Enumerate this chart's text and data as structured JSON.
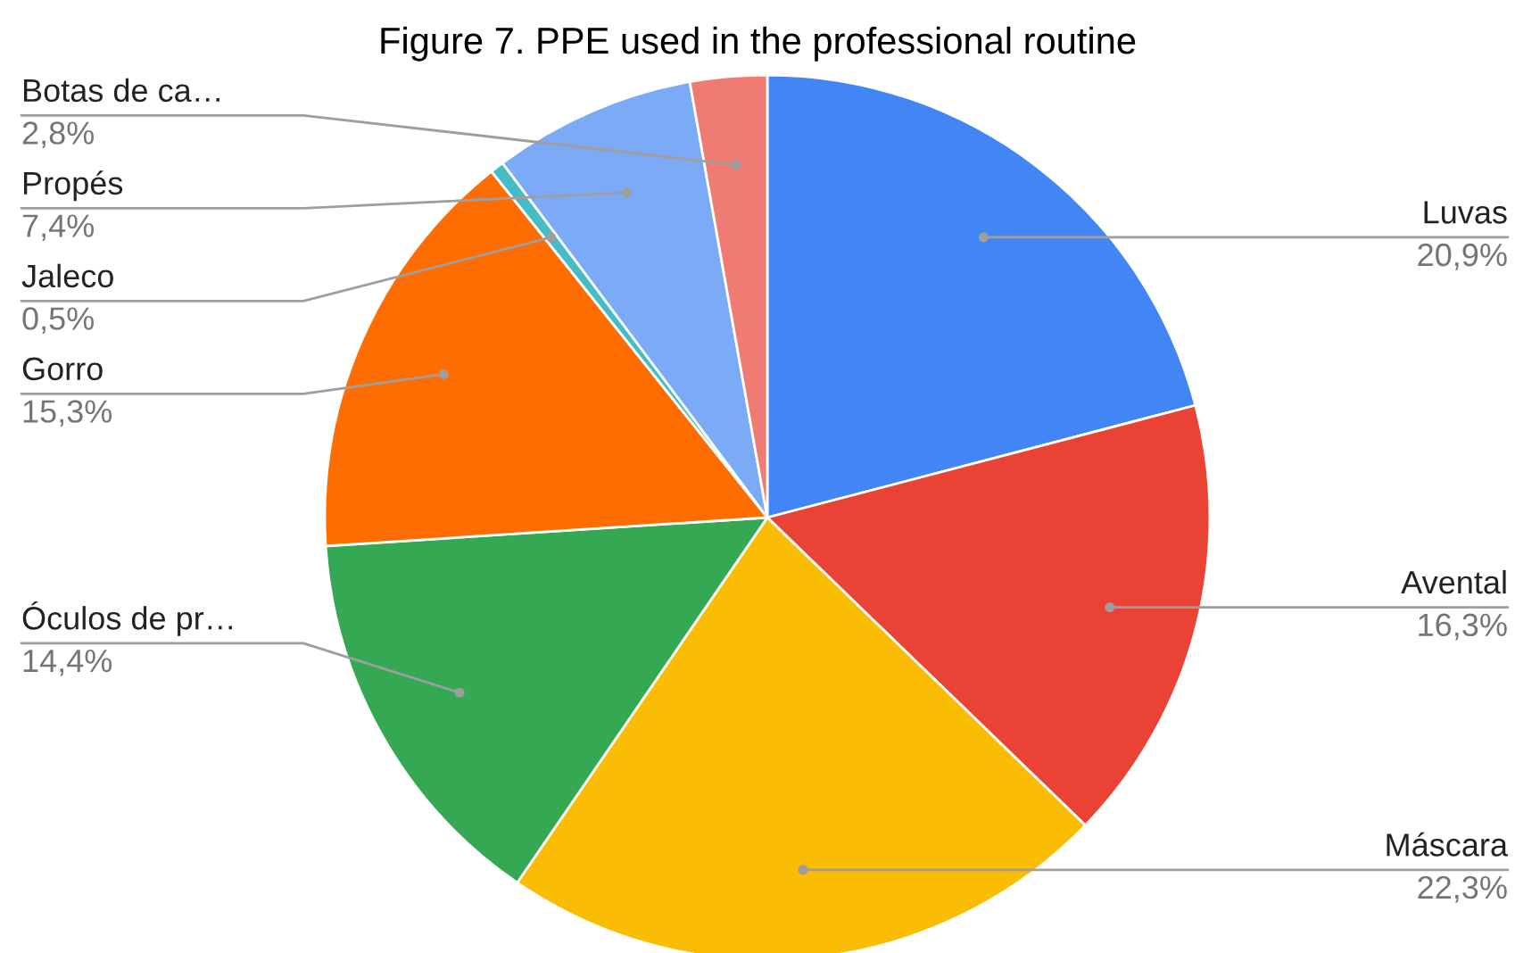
{
  "chart_data": {
    "type": "pie",
    "title": "Figure 7. PPE used in the professional routine",
    "categories": [
      "Luvas",
      "Avental",
      "Máscara",
      "Óculos de pr…",
      "Gorro",
      "Jaleco",
      "Propés",
      "Botas de ca…"
    ],
    "values": [
      20.9,
      16.3,
      22.3,
      14.4,
      15.3,
      0.5,
      7.4,
      2.8
    ],
    "value_labels": [
      "20,9%",
      "16,3%",
      "22,3%",
      "14,4%",
      "15,3%",
      "0,5%",
      "7,4%",
      "2,8%"
    ],
    "colors": [
      "#4285f4",
      "#ea4335",
      "#fbbc04",
      "#34a853",
      "#ff6d01",
      "#46bdc6",
      "#7baaf7",
      "#f07b72"
    ]
  }
}
